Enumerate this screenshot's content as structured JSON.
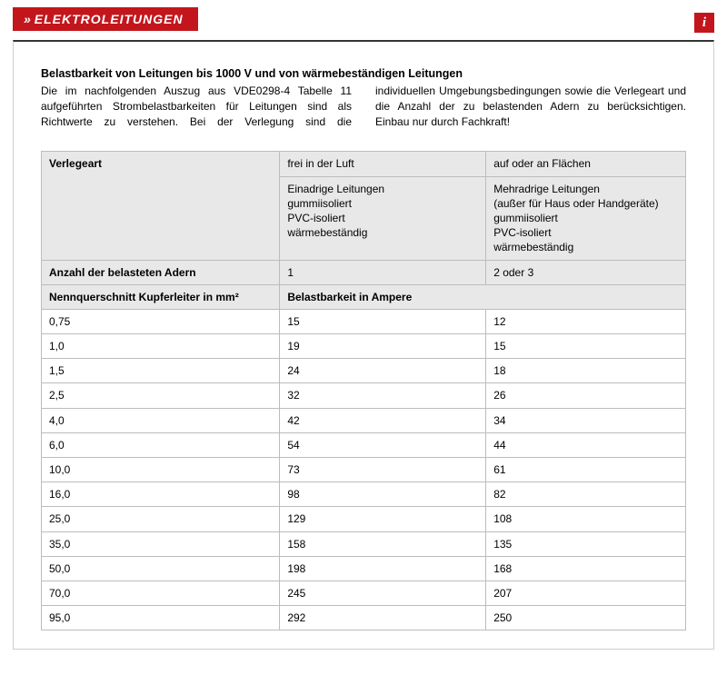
{
  "colors": {
    "brand_red": "#c3161c",
    "white": "#ffffff",
    "border_gray": "#bcbcbc",
    "header_bg": "#e8e8e8",
    "frame_border": "#cfcfcf",
    "frame_top": "#333333"
  },
  "header": {
    "chevron": "»",
    "title": "ELEKTROLEITUNGEN",
    "info_symbol": "i"
  },
  "intro": {
    "title": "Belastbarkeit von Leitungen bis 1000 V und von wärmebeständigen Leitungen",
    "text": "Die im nachfolgenden Auszug aus VDE0298-4 Tabelle 11 aufgeführten Strombelastbarkeiten für Leitungen sind als Richtwerte zu verstehen. Bei der Verlegung sind die individuellen Umgebungsbedingungen sowie die Verlegeart und die Anzahl der zu belastenden Adern zu berücksichtigen. Einbau nur durch Fachkraft!"
  },
  "table": {
    "head": {
      "row1": {
        "c1": "Verlegeart",
        "c2": "frei in der Luft",
        "c3": "auf oder an Flächen"
      },
      "row2": {
        "c2": "Einadrige Leitungen\ngummiisoliert\nPVC-isoliert\nwärmebeständig",
        "c3": "Mehradrige Leitungen\n(außer für Haus oder Handgeräte)\ngummiisoliert\nPVC-isoliert\nwärmebeständig"
      },
      "row3": {
        "c1": "Anzahl der belasteten Adern",
        "c2": "1",
        "c3": "2 oder 3"
      },
      "row4": {
        "c1": "Nennquerschnitt Kupferleiter in mm²",
        "c2": "Belastbarkeit in Ampere"
      }
    },
    "rows": [
      {
        "c1": "0,75",
        "c2": "15",
        "c3": "12"
      },
      {
        "c1": "1,0",
        "c2": "19",
        "c3": "15"
      },
      {
        "c1": "1,5",
        "c2": "24",
        "c3": "18"
      },
      {
        "c1": "2,5",
        "c2": "32",
        "c3": "26"
      },
      {
        "c1": "4,0",
        "c2": "42",
        "c3": "34"
      },
      {
        "c1": "6,0",
        "c2": "54",
        "c3": "44"
      },
      {
        "c1": "10,0",
        "c2": "73",
        "c3": "61"
      },
      {
        "c1": "16,0",
        "c2": "98",
        "c3": "82"
      },
      {
        "c1": "25,0",
        "c2": "129",
        "c3": "108"
      },
      {
        "c1": "35,0",
        "c2": "158",
        "c3": "135"
      },
      {
        "c1": "50,0",
        "c2": "198",
        "c3": "168"
      },
      {
        "c1": "70,0",
        "c2": "245",
        "c3": "207"
      },
      {
        "c1": "95,0",
        "c2": "292",
        "c3": "250"
      }
    ]
  }
}
